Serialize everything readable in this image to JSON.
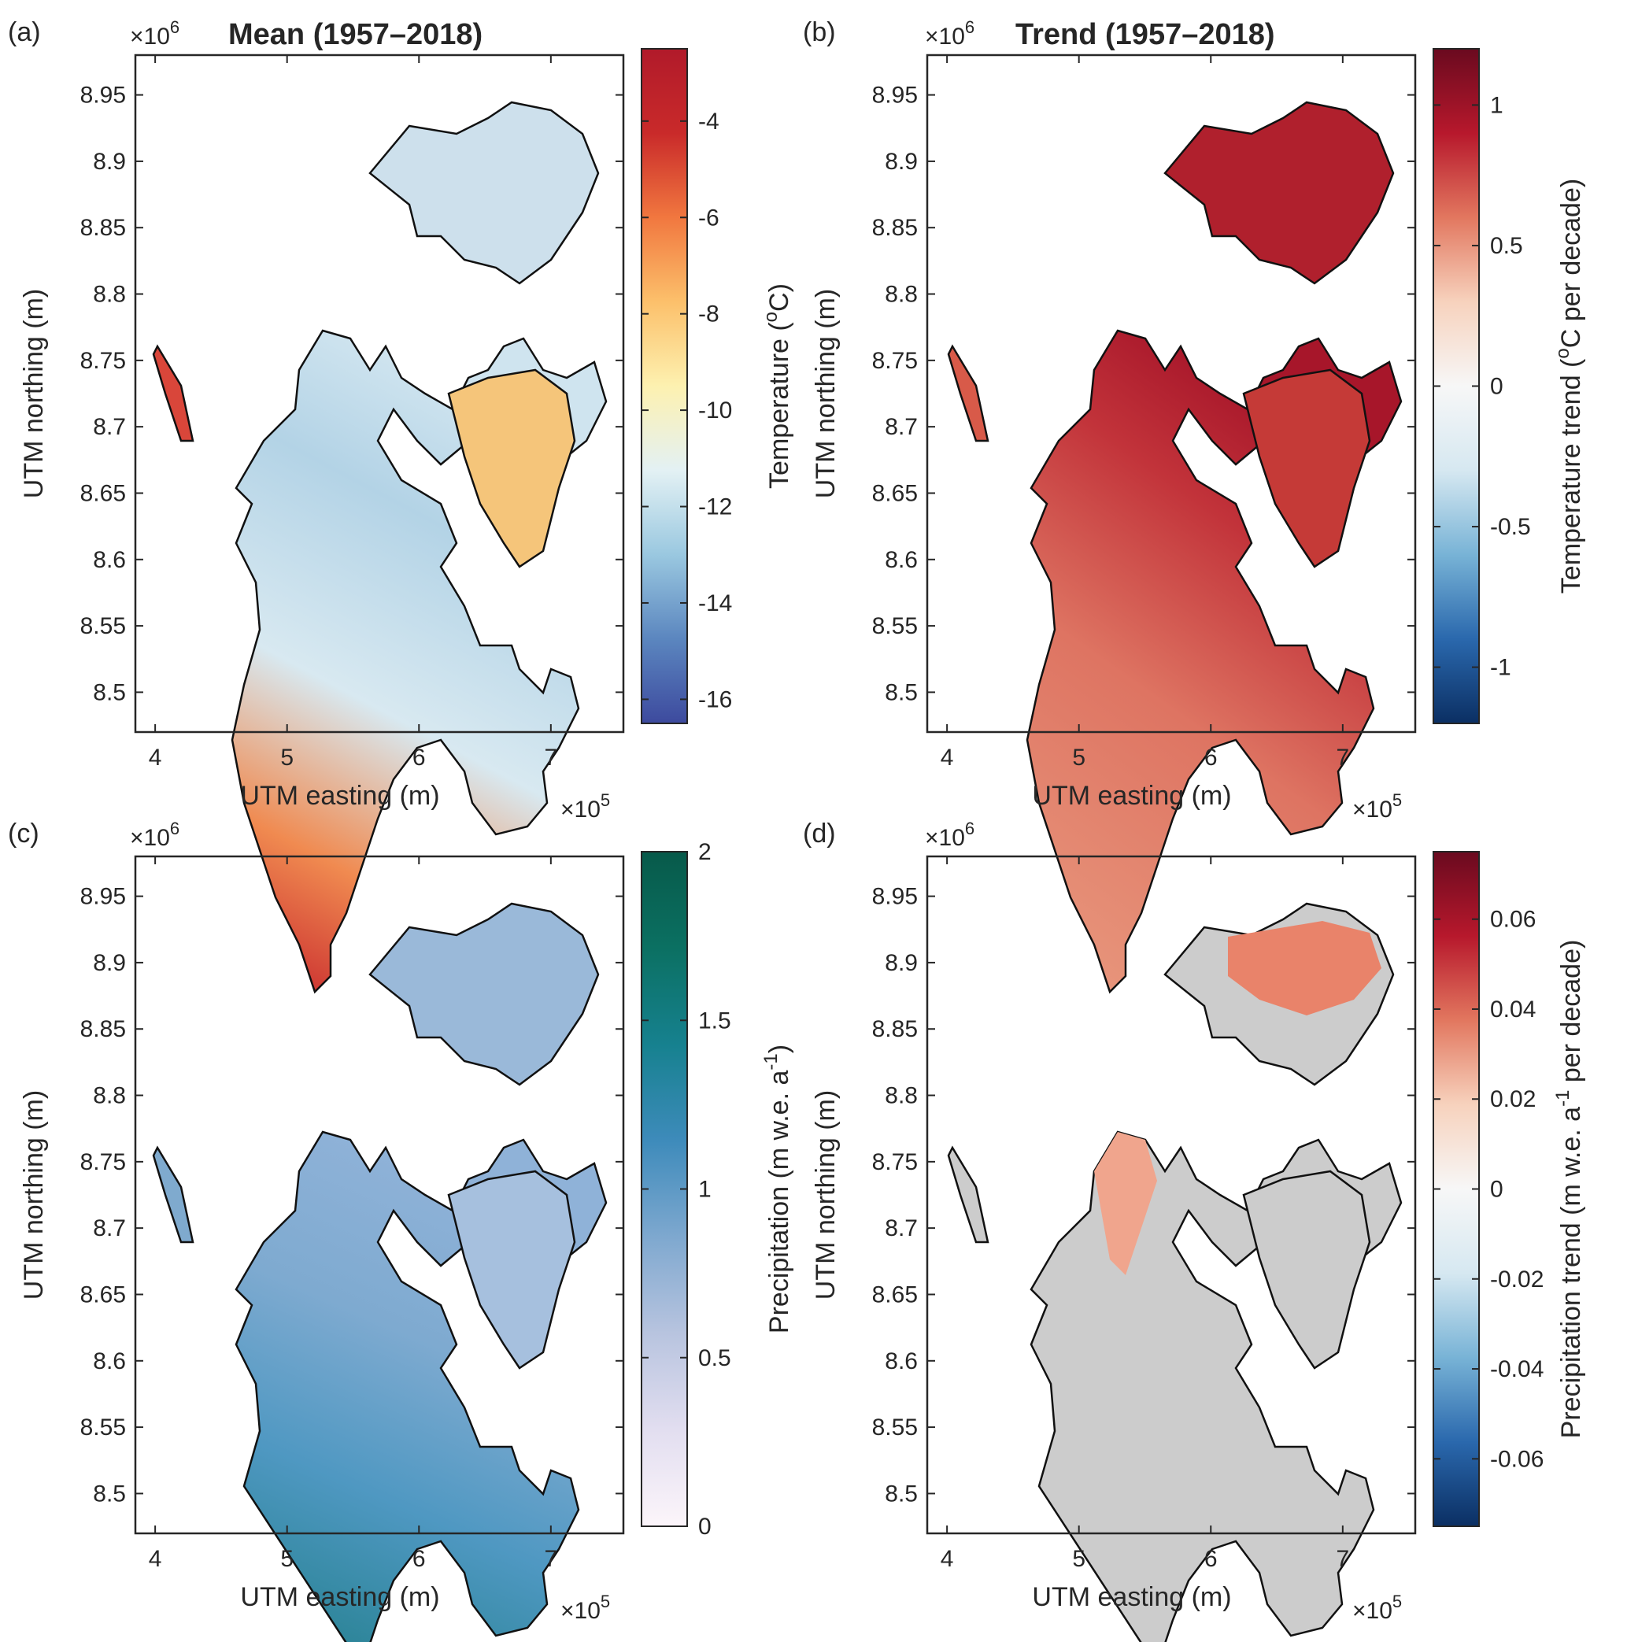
{
  "panels": [
    {
      "label": "(a)",
      "title": "Mean (1957–2018)",
      "xlabel": "UTM easting (m)",
      "ylabel": "UTM northing (m)",
      "x_multiplier": "×10",
      "x_multiplier_exp": "5",
      "y_multiplier": "×10",
      "y_multiplier_exp": "6",
      "x_ticks": [
        "4",
        "5",
        "6",
        "7"
      ],
      "y_ticks": [
        "8.95",
        "8.9",
        "8.85",
        "8.8",
        "8.75",
        "8.7",
        "8.65",
        "8.6",
        "8.55",
        "8.5"
      ],
      "colorbar": {
        "label": "Temperature (",
        "label_sup": "o",
        "label_end": "C)",
        "range": [
          -16.5,
          -2.5
        ],
        "ticks": [
          "-4",
          "-6",
          "-8",
          "-10",
          "-12",
          "-14",
          "-16"
        ],
        "tick_values": [
          -4,
          -6,
          -8,
          -10,
          -12,
          -14,
          -16
        ],
        "colors": [
          "#3d4a9e",
          "#5b86bf",
          "#9ac8e0",
          "#e3f1f4",
          "#fdf1b0",
          "#fcc06b",
          "#f1773f",
          "#c92a2a",
          "#b11a2a"
        ]
      }
    },
    {
      "label": "(b)",
      "title": "Trend (1957–2018)",
      "xlabel": "UTM easting (m)",
      "ylabel": "UTM northing (m)",
      "x_multiplier": "×10",
      "x_multiplier_exp": "5",
      "y_multiplier": "×10",
      "y_multiplier_exp": "6",
      "x_ticks": [
        "4",
        "5",
        "6",
        "7"
      ],
      "y_ticks": [
        "8.95",
        "8.9",
        "8.85",
        "8.8",
        "8.75",
        "8.7",
        "8.65",
        "8.6",
        "8.55",
        "8.5"
      ],
      "colorbar": {
        "label": "Temperature trend (",
        "label_sup": "o",
        "label_end": "C  per decade)",
        "range": [
          -1.2,
          1.2
        ],
        "ticks": [
          "1",
          "0.5",
          "0",
          "-0.5",
          "-1"
        ],
        "tick_values": [
          1,
          0.5,
          0,
          -0.5,
          -1
        ],
        "colors": [
          "#0b2f63",
          "#2a68ad",
          "#78b3d6",
          "#d6e8f1",
          "#f7f7f7",
          "#f7d2bd",
          "#e2775f",
          "#b7182c",
          "#6a0a1f"
        ]
      }
    },
    {
      "label": "(c)",
      "title": "",
      "xlabel": "UTM easting (m)",
      "ylabel": "UTM northing (m)",
      "x_multiplier": "×10",
      "x_multiplier_exp": "5",
      "y_multiplier": "×10",
      "y_multiplier_exp": "6",
      "x_ticks": [
        "4",
        "5",
        "6",
        "7"
      ],
      "y_ticks": [
        "8.95",
        "8.9",
        "8.85",
        "8.8",
        "8.75",
        "8.7",
        "8.65",
        "8.6",
        "8.55",
        "8.5"
      ],
      "colorbar": {
        "label": "Precipitation (m w.e. a",
        "label_sup": "-1",
        "label_end": ")",
        "range": [
          0,
          2
        ],
        "ticks": [
          "2",
          "1.5",
          "1",
          "0.5",
          "0"
        ],
        "tick_values": [
          2,
          1.5,
          1,
          0.5,
          0
        ],
        "colors": [
          "#fcf5fa",
          "#e2def0",
          "#b8c4df",
          "#7ea8cf",
          "#3e8bbb",
          "#16818f",
          "#0b7062",
          "#075a4a"
        ]
      }
    },
    {
      "label": "(d)",
      "title": "",
      "xlabel": "UTM easting (m)",
      "ylabel": "UTM northing (m)",
      "x_multiplier": "×10",
      "x_multiplier_exp": "5",
      "y_multiplier": "×10",
      "y_multiplier_exp": "6",
      "x_ticks": [
        "4",
        "5",
        "6",
        "7"
      ],
      "y_ticks": [
        "8.95",
        "8.9",
        "8.85",
        "8.8",
        "8.75",
        "8.7",
        "8.65",
        "8.6",
        "8.55",
        "8.5"
      ],
      "colorbar": {
        "label": "Precipitation trend (m w.e. a",
        "label_sup": "-1",
        "label_end": " per decade)",
        "range": [
          -0.075,
          0.075
        ],
        "ticks": [
          "0.06",
          "0.04",
          "0.02",
          "0",
          "-0.02",
          "-0.04",
          "-0.06"
        ],
        "tick_values": [
          0.06,
          0.04,
          0.02,
          0,
          -0.02,
          -0.04,
          -0.06
        ],
        "colors": [
          "#0b2f63",
          "#2a68ad",
          "#78b3d6",
          "#d6e8f1",
          "#f7f7f7",
          "#f7d2bd",
          "#e2775f",
          "#b7182c",
          "#6a0a1f"
        ]
      }
    }
  ],
  "map_fills": {
    "a": {
      "south": "#d2453a",
      "central": "#c7dfec",
      "east": "#f6c77c",
      "ne": "#cfe2ee",
      "coast": "#f6dd8f"
    },
    "b": {
      "south": "#e58d72",
      "central": "#dc6d5b",
      "east": "#c63a37",
      "ne": "#b3202e",
      "coast": "#d25a4c"
    },
    "c": {
      "south": "#2e879e",
      "central": "#6ea6c9",
      "east": "#9dbcdc",
      "ne": "#9bb9d9",
      "coast": "#c2cbe4"
    },
    "d": {
      "base": "#cccccc",
      "hot": "#c8423d",
      "warm": "#f0a58d"
    }
  }
}
